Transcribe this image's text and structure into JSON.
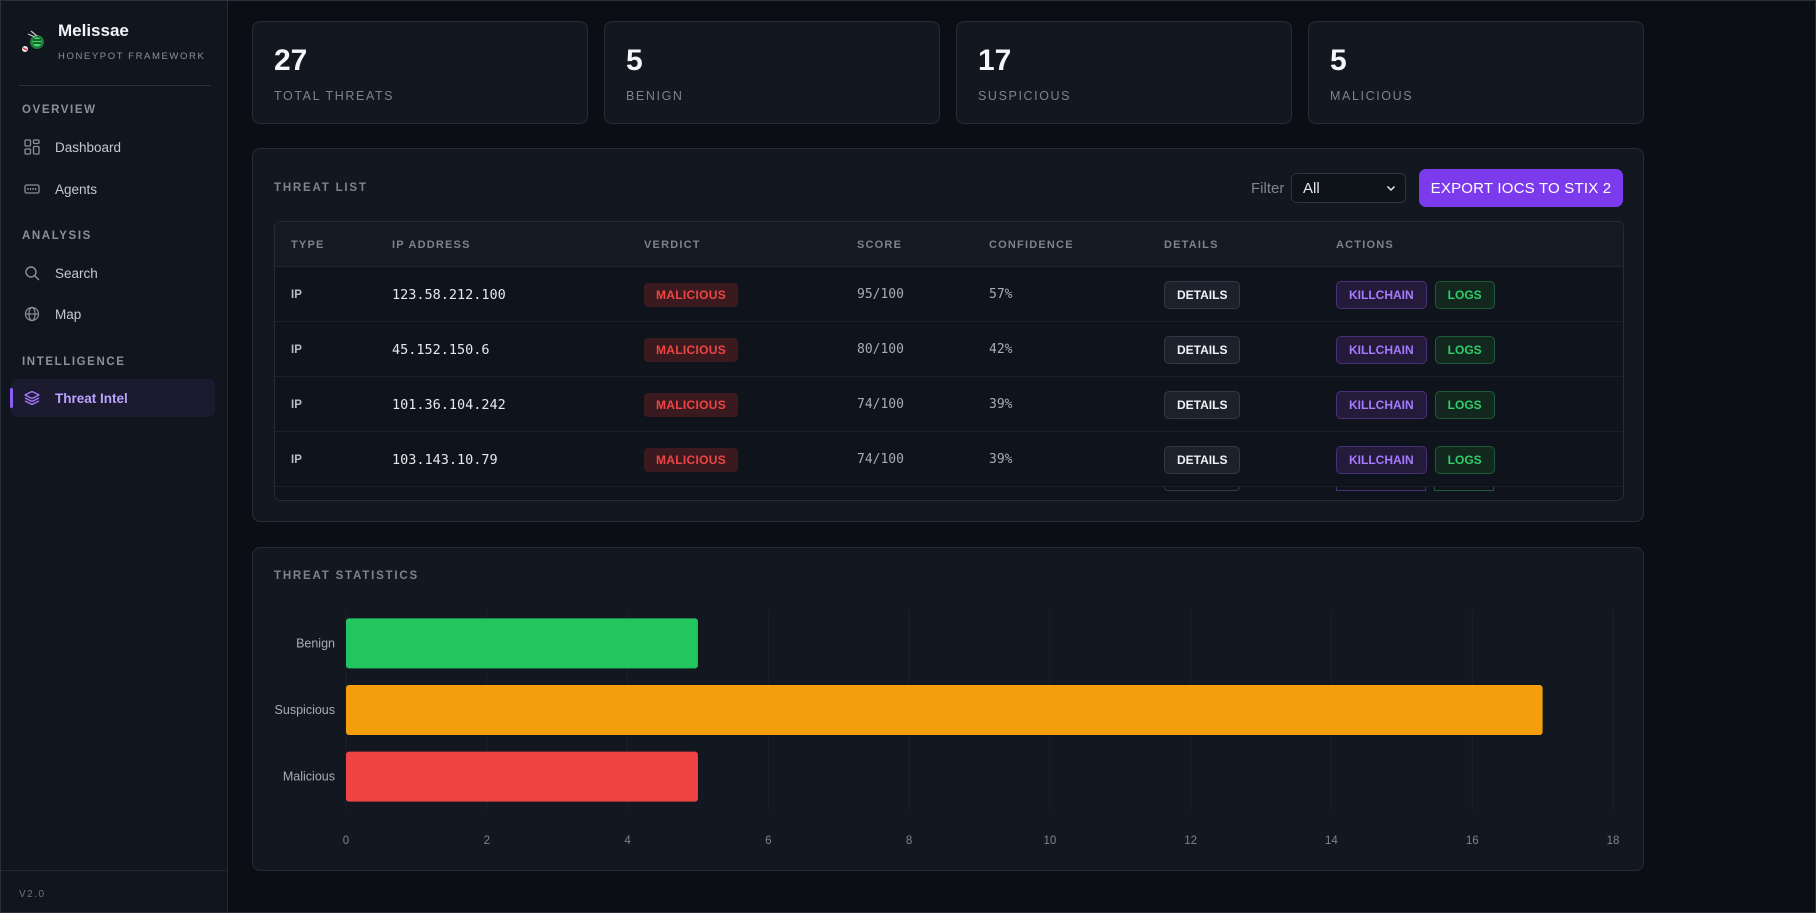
{
  "app": {
    "name": "Melissae",
    "subtitle": "HONEYPOT FRAMEWORK",
    "version": "V2.0"
  },
  "sidebar": {
    "sections": [
      {
        "label": "OVERVIEW",
        "items": [
          {
            "label": "Dashboard",
            "icon": "dashboard-icon"
          },
          {
            "label": "Agents",
            "icon": "agents-icon"
          }
        ]
      },
      {
        "label": "ANALYSIS",
        "items": [
          {
            "label": "Search",
            "icon": "search-icon"
          },
          {
            "label": "Map",
            "icon": "globe-icon"
          }
        ]
      },
      {
        "label": "INTELLIGENCE",
        "items": [
          {
            "label": "Threat Intel",
            "icon": "layers-icon",
            "active": true
          }
        ]
      }
    ]
  },
  "stats": [
    {
      "value": "27",
      "label": "TOTAL THREATS"
    },
    {
      "value": "5",
      "label": "BENIGN"
    },
    {
      "value": "17",
      "label": "SUSPICIOUS"
    },
    {
      "value": "5",
      "label": "MALICIOUS"
    }
  ],
  "threat_list": {
    "title": "THREAT LIST",
    "filter_label": "Filter",
    "filter_value": "All",
    "export_label": "EXPORT IOCS TO STIX 2",
    "columns": [
      "TYPE",
      "IP ADDRESS",
      "VERDICT",
      "SCORE",
      "CONFIDENCE",
      "DETAILS",
      "ACTIONS"
    ],
    "rows": [
      {
        "type": "IP",
        "ip": "123.58.212.100",
        "verdict": "MALICIOUS",
        "score": "95/100",
        "confidence": "57%",
        "details": "DETAILS",
        "killchain": "KILLCHAIN",
        "logs": "LOGS"
      },
      {
        "type": "IP",
        "ip": "45.152.150.6",
        "verdict": "MALICIOUS",
        "score": "80/100",
        "confidence": "42%",
        "details": "DETAILS",
        "killchain": "KILLCHAIN",
        "logs": "LOGS"
      },
      {
        "type": "IP",
        "ip": "101.36.104.242",
        "verdict": "MALICIOUS",
        "score": "74/100",
        "confidence": "39%",
        "details": "DETAILS",
        "killchain": "KILLCHAIN",
        "logs": "LOGS"
      },
      {
        "type": "IP",
        "ip": "103.143.10.79",
        "verdict": "MALICIOUS",
        "score": "74/100",
        "confidence": "39%",
        "details": "DETAILS",
        "killchain": "KILLCHAIN",
        "logs": "LOGS"
      }
    ]
  },
  "statistics": {
    "title": "THREAT STATISTICS"
  },
  "colors": {
    "accent": "#7c3aed",
    "benign": "#22c55e",
    "suspicious": "#f59e0b",
    "malicious": "#ef4444"
  },
  "chart_data": {
    "type": "bar",
    "orientation": "horizontal",
    "categories": [
      "Benign",
      "Suspicious",
      "Malicious"
    ],
    "values": [
      5,
      17,
      5
    ],
    "colors": [
      "#22c55e",
      "#f59e0b",
      "#ef4444"
    ],
    "xlim": [
      0,
      18
    ],
    "xticks": [
      0,
      2,
      4,
      6,
      8,
      10,
      12,
      14,
      16,
      18
    ],
    "grid": true,
    "legend": "none"
  }
}
